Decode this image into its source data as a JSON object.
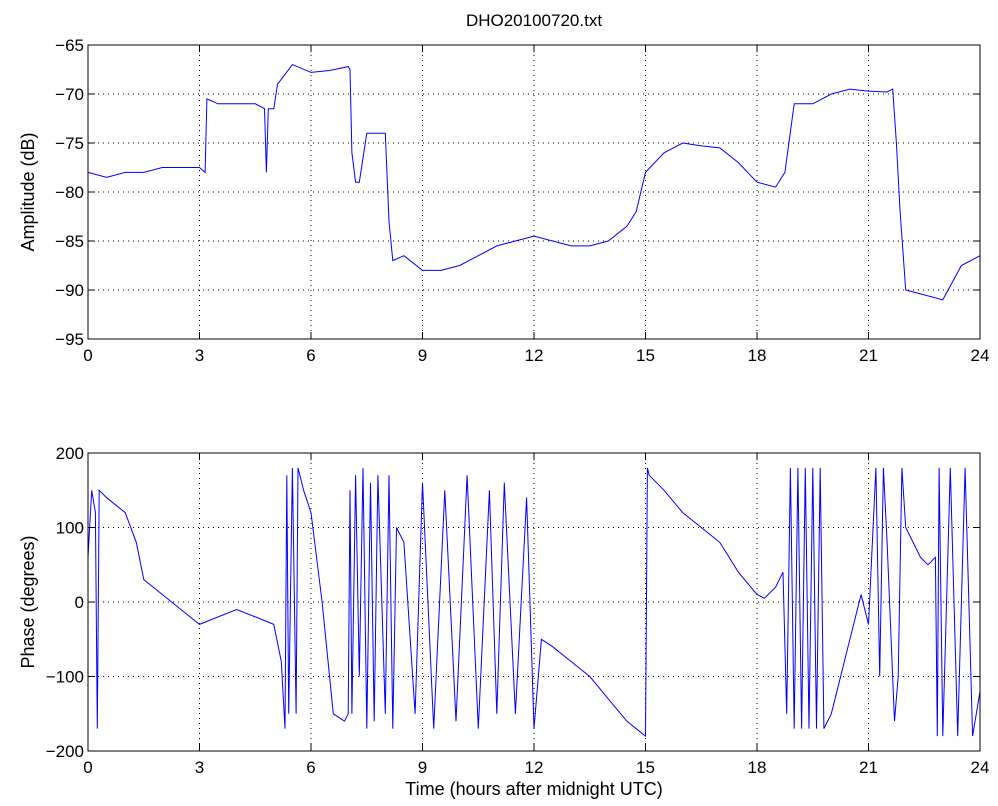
{
  "figure": {
    "title": "DHO20100720.txt",
    "line_color": "#0000ff",
    "background": "#ffffff"
  },
  "chart_data": [
    {
      "type": "line",
      "title": "DHO20100720.txt",
      "xlabel": "",
      "ylabel": "Amplitude (dB)",
      "xlim": [
        0,
        24
      ],
      "ylim": [
        -95,
        -65
      ],
      "xticks": [
        0,
        3,
        6,
        9,
        12,
        15,
        18,
        21,
        24
      ],
      "yticks": [
        -95,
        -90,
        -85,
        -80,
        -75,
        -70,
        -65
      ],
      "grid": true,
      "series": [
        {
          "color": "#0000ff",
          "x": [
            0.0,
            0.5,
            1.0,
            1.5,
            2.0,
            2.5,
            3.0,
            3.15,
            3.2,
            3.5,
            4.0,
            4.5,
            4.75,
            4.8,
            4.85,
            5.0,
            5.1,
            5.3,
            5.5,
            6.0,
            6.5,
            7.0,
            7.05,
            7.1,
            7.2,
            7.3,
            7.5,
            8.0,
            8.1,
            8.2,
            8.5,
            9.0,
            9.5,
            10.0,
            10.5,
            11.0,
            11.5,
            12.0,
            12.5,
            13.0,
            13.5,
            14.0,
            14.5,
            14.75,
            15.0,
            15.5,
            16.0,
            16.5,
            17.0,
            17.5,
            18.0,
            18.5,
            18.75,
            19.0,
            19.5,
            20.0,
            20.5,
            21.0,
            21.5,
            21.65,
            21.75,
            21.85,
            22.0,
            22.5,
            23.0,
            23.5,
            24.0
          ],
          "y": [
            -78,
            -78.5,
            -78,
            -78,
            -77.5,
            -77.5,
            -77.5,
            -78,
            -70.5,
            -71,
            -71,
            -71,
            -71.5,
            -78,
            -71.5,
            -71.5,
            -69,
            -68,
            -67,
            -67.8,
            -67.6,
            -67.2,
            -67.5,
            -76,
            -79,
            -79,
            -74,
            -74,
            -83,
            -87,
            -86.5,
            -88,
            -88,
            -87.5,
            -86.5,
            -85.5,
            -85,
            -84.5,
            -85,
            -85.5,
            -85.5,
            -85,
            -83.5,
            -82,
            -78,
            -76,
            -75,
            -75.3,
            -75.5,
            -77,
            -79,
            -79.5,
            -78,
            -71,
            -71,
            -70,
            -69.5,
            -69.7,
            -69.8,
            -69.5,
            -75,
            -82,
            -90,
            -90.5,
            -91,
            -87.5,
            -86.5
          ]
        }
      ]
    },
    {
      "type": "line",
      "title": "",
      "xlabel": "Time (hours after midnight UTC)",
      "ylabel": "Phase (degrees)",
      "xlim": [
        0,
        24
      ],
      "ylim": [
        -200,
        200
      ],
      "xticks": [
        0,
        3,
        6,
        9,
        12,
        15,
        18,
        21,
        24
      ],
      "yticks": [
        -200,
        -100,
        0,
        100,
        200
      ],
      "grid": true,
      "series": [
        {
          "color": "#0000ff",
          "x": [
            0.0,
            0.1,
            0.2,
            0.25,
            0.3,
            0.5,
            1.0,
            1.3,
            1.5,
            2.0,
            2.5,
            3.0,
            3.5,
            4.0,
            4.5,
            5.0,
            5.2,
            5.3,
            5.35,
            5.4,
            5.5,
            5.6,
            5.65,
            5.7,
            5.8,
            6.0,
            6.3,
            6.6,
            6.9,
            7.0,
            7.05,
            7.1,
            7.2,
            7.3,
            7.4,
            7.5,
            7.6,
            7.7,
            7.8,
            8.0,
            8.1,
            8.2,
            8.3,
            8.5,
            8.8,
            9.0,
            9.3,
            9.6,
            9.9,
            10.2,
            10.5,
            10.8,
            11.0,
            11.2,
            11.5,
            11.8,
            12.0,
            12.2,
            12.5,
            13.0,
            13.5,
            14.0,
            14.5,
            15.0,
            15.05,
            15.1,
            15.5,
            16.0,
            16.5,
            17.0,
            17.5,
            18.0,
            18.2,
            18.5,
            18.7,
            18.8,
            18.9,
            19.0,
            19.1,
            19.2,
            19.3,
            19.4,
            19.5,
            19.6,
            19.7,
            19.8,
            20.0,
            20.5,
            20.8,
            21.0,
            21.2,
            21.3,
            21.4,
            21.5,
            21.7,
            21.8,
            21.9,
            22.0,
            22.2,
            22.4,
            22.6,
            22.8,
            22.85,
            22.9,
            23.0,
            23.2,
            23.4,
            23.6,
            23.8,
            24.0
          ],
          "y": [
            60,
            150,
            120,
            -170,
            150,
            140,
            120,
            80,
            30,
            10,
            -10,
            -30,
            -20,
            -10,
            -20,
            -30,
            -80,
            -170,
            170,
            -150,
            180,
            -150,
            180,
            170,
            150,
            120,
            0,
            -150,
            -160,
            -150,
            150,
            -150,
            170,
            -100,
            180,
            -170,
            160,
            -160,
            170,
            -150,
            170,
            -170,
            100,
            80,
            -150,
            160,
            -170,
            150,
            -160,
            170,
            -170,
            150,
            -150,
            160,
            -150,
            140,
            -170,
            -50,
            -60,
            -80,
            -100,
            -130,
            -160,
            -180,
            180,
            170,
            150,
            120,
            100,
            80,
            40,
            10,
            5,
            20,
            40,
            -150,
            180,
            -170,
            180,
            -170,
            180,
            -170,
            180,
            -170,
            180,
            -170,
            -150,
            -50,
            10,
            -30,
            180,
            -100,
            180,
            80,
            -160,
            -100,
            180,
            100,
            80,
            60,
            50,
            60,
            -180,
            180,
            -180,
            180,
            -180,
            180,
            -180,
            -120
          ]
        }
      ]
    }
  ]
}
